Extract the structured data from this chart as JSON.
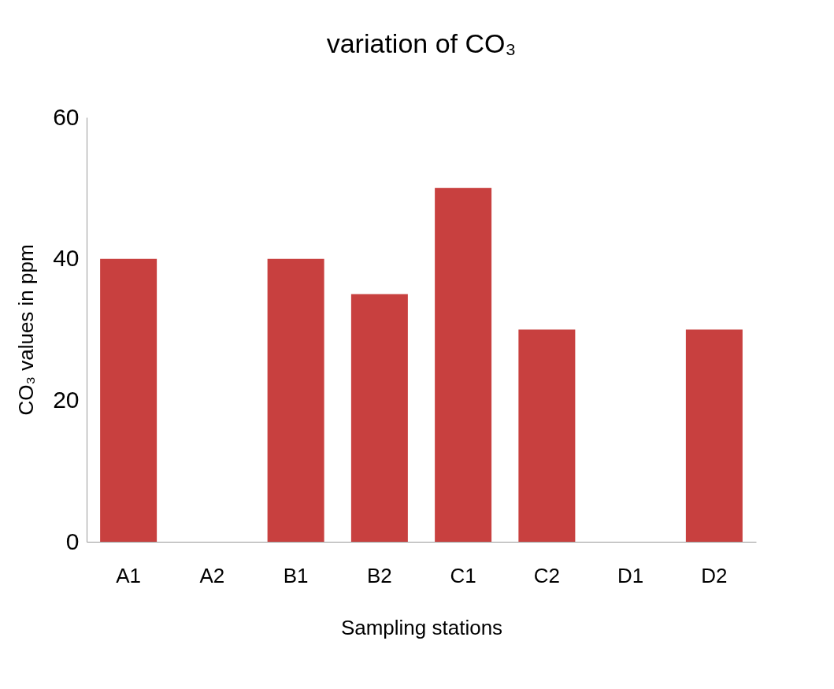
{
  "chart_data": {
    "type": "bar",
    "title": "variation of CO₃",
    "xlabel": "Sampling stations",
    "ylabel": "CO₃ values in ppm",
    "categories": [
      "A1",
      "A2",
      "B1",
      "B2",
      "C1",
      "C2",
      "D1",
      "D2"
    ],
    "values": [
      40,
      0,
      40,
      35,
      50,
      30,
      0,
      30
    ],
    "color": "#c8403f",
    "ylim": [
      0,
      60
    ],
    "yticks": [
      0,
      20,
      40,
      60
    ],
    "grid": false
  }
}
